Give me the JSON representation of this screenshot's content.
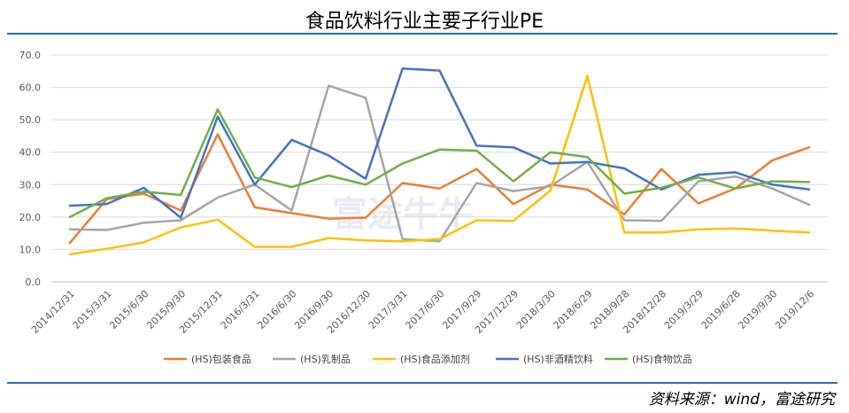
{
  "chart_data": {
    "type": "line",
    "title": "食品饮料行业主要子行业PE",
    "x": [
      "2014/12/31",
      "2015/3/31",
      "2015/6/30",
      "2015/9/30",
      "2015/12/31",
      "2016/3/31",
      "2016/6/30",
      "2016/9/30",
      "2016/12/30",
      "2017/3/31",
      "2017/6/30",
      "2017/9/29",
      "2017/12/29",
      "2018/3/30",
      "2018/6/29",
      "2018/9/28",
      "2018/12/28",
      "2019/3/29",
      "2019/6/28",
      "2019/9/30",
      "2019/12/6"
    ],
    "ylim": [
      0,
      70
    ],
    "yticks": [
      "0.0",
      "10.0",
      "20.0",
      "30.0",
      "40.0",
      "50.0",
      "60.0",
      "70.0"
    ],
    "grid": true,
    "legend_position": "bottom",
    "series": [
      {
        "name": "(HS)包装食品",
        "color": "#ed7d31",
        "values": [
          12.0,
          25.5,
          27.2,
          22.0,
          45.5,
          23.0,
          21.2,
          19.5,
          19.8,
          30.5,
          28.8,
          34.8,
          24.0,
          30.0,
          28.5,
          20.8,
          34.8,
          24.2,
          28.8,
          37.5,
          41.5
        ]
      },
      {
        "name": "(HS)乳制品",
        "color": "#a5a5a5",
        "values": [
          16.2,
          16.0,
          18.2,
          19.0,
          26.0,
          30.0,
          22.0,
          60.5,
          56.8,
          13.2,
          12.5,
          30.5,
          28.0,
          29.5,
          37.0,
          19.0,
          18.8,
          31.0,
          32.5,
          28.8,
          23.8
        ]
      },
      {
        "name": "(HS)食品添加剂",
        "color": "#ffc000",
        "values": [
          8.5,
          10.2,
          12.2,
          16.8,
          19.2,
          10.8,
          10.8,
          13.5,
          12.8,
          12.5,
          13.2,
          19.0,
          18.8,
          28.2,
          63.5,
          15.2,
          15.2,
          16.2,
          16.5,
          15.8,
          15.2
        ]
      },
      {
        "name": "(HS)非酒精饮料",
        "color": "#4472c4",
        "values": [
          23.5,
          24.0,
          29.0,
          19.8,
          51.0,
          30.0,
          43.8,
          39.0,
          31.8,
          65.8,
          65.2,
          42.0,
          41.5,
          36.5,
          37.0,
          35.0,
          28.5,
          33.0,
          33.8,
          30.0,
          28.5
        ]
      },
      {
        "name": "(HS)食物饮品",
        "color": "#70ad47",
        "values": [
          20.0,
          25.8,
          27.8,
          26.8,
          53.2,
          32.2,
          29.2,
          32.8,
          30.0,
          36.5,
          40.8,
          40.5,
          31.0,
          40.0,
          38.5,
          27.2,
          29.0,
          32.2,
          28.8,
          31.0,
          30.8
        ]
      }
    ]
  },
  "source": "资料来源：wind，富途研究",
  "watermark": "富途牛牛"
}
